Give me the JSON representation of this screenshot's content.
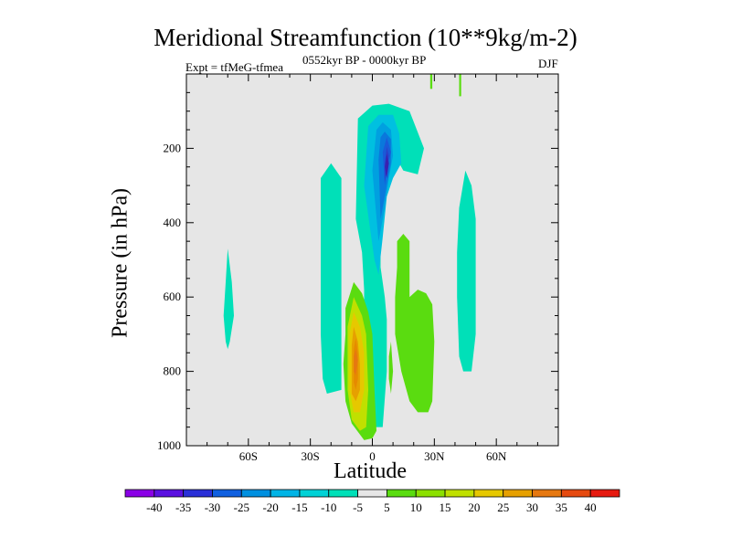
{
  "chart_data": {
    "type": "heatmap",
    "title": "Meridional Streamfunction (10**9kg/m-2)",
    "subtitle_left": "Expt = tfMeG-tfmea",
    "subtitle_center": "0552kyr BP - 0000kyr BP",
    "subtitle_right": "DJF",
    "xlabel": "Latitude",
    "ylabel": "Pressure (in hPa)",
    "xlim": [
      -90,
      90
    ],
    "ylim": [
      1000,
      0
    ],
    "x_ticks": [
      {
        "value": -60,
        "label": "60S"
      },
      {
        "value": -30,
        "label": "30S"
      },
      {
        "value": 0,
        "label": "0"
      },
      {
        "value": 30,
        "label": "30N"
      },
      {
        "value": 60,
        "label": "60N"
      }
    ],
    "y_ticks": [
      {
        "value": 200,
        "label": "200"
      },
      {
        "value": 400,
        "label": "400"
      },
      {
        "value": 600,
        "label": "600"
      },
      {
        "value": 800,
        "label": "800"
      },
      {
        "value": 1000,
        "label": "1000"
      }
    ],
    "background_color": "#e6e6e6",
    "colorbar": {
      "labels": [
        "-40",
        "-35",
        "-30",
        "-25",
        "-20",
        "-15",
        "-10",
        "-5",
        "5",
        "10",
        "15",
        "20",
        "25",
        "30",
        "35",
        "40"
      ],
      "colors": [
        "#8a00e6",
        "#5a10e0",
        "#2a30d8",
        "#1060e0",
        "#0090e0",
        "#00b4e6",
        "#00d2d6",
        "#00e0b8",
        "#e6e6e6",
        "#5adc10",
        "#8ce000",
        "#c0e000",
        "#e6c800",
        "#e6a000",
        "#e67810",
        "#e64a10",
        "#e61a10"
      ]
    },
    "regions": [
      {
        "name": "nh-upper-anomaly",
        "level": 5,
        "points": [
          [
            28,
            40
          ],
          [
            28,
            0
          ],
          [
            29,
            0
          ],
          [
            29,
            40
          ]
        ]
      },
      {
        "name": "nh-upper-anomaly-2",
        "level": 5,
        "points": [
          [
            42,
            60
          ],
          [
            42,
            0
          ],
          [
            43,
            0
          ],
          [
            43,
            60
          ]
        ]
      },
      {
        "name": "nh-upper-jet",
        "level": -5,
        "points": [
          [
            -8,
            390
          ],
          [
            -7,
            120
          ],
          [
            0,
            85
          ],
          [
            8,
            80
          ],
          [
            18,
            100
          ],
          [
            25,
            200
          ],
          [
            22,
            270
          ],
          [
            15,
            260
          ],
          [
            10,
            210
          ],
          [
            7,
            250
          ],
          [
            5,
            300
          ],
          [
            4,
            450
          ],
          [
            4,
            520
          ],
          [
            6,
            600
          ],
          [
            7,
            660
          ],
          [
            7,
            800
          ],
          [
            5,
            950
          ],
          [
            -3,
            950
          ],
          [
            -4,
            750
          ],
          [
            -4,
            580
          ],
          [
            -5,
            480
          ]
        ]
      },
      {
        "name": "jet-core-10",
        "level": -10,
        "points": [
          [
            -4,
            300
          ],
          [
            -2,
            140
          ],
          [
            3,
            110
          ],
          [
            10,
            110
          ],
          [
            13,
            160
          ],
          [
            14,
            240
          ],
          [
            10,
            280
          ],
          [
            7,
            330
          ],
          [
            5,
            440
          ],
          [
            3,
            540
          ],
          [
            1,
            500
          ],
          [
            -1,
            420
          ]
        ]
      },
      {
        "name": "jet-core-15",
        "level": -15,
        "points": [
          [
            0,
            260
          ],
          [
            2,
            150
          ],
          [
            5,
            130
          ],
          [
            9,
            150
          ],
          [
            10,
            220
          ],
          [
            8,
            280
          ],
          [
            6,
            360
          ],
          [
            3,
            450
          ]
        ]
      },
      {
        "name": "jet-core-20",
        "level": -20,
        "points": [
          [
            3,
            230
          ],
          [
            4,
            170
          ],
          [
            6,
            155
          ],
          [
            9,
            175
          ],
          [
            9,
            240
          ],
          [
            7,
            300
          ],
          [
            5,
            360
          ],
          [
            4,
            390
          ]
        ]
      },
      {
        "name": "jet-core-25",
        "level": -25,
        "points": [
          [
            5,
            210
          ],
          [
            7,
            170
          ],
          [
            9,
            210
          ],
          [
            7,
            260
          ],
          [
            6,
            300
          ]
        ]
      },
      {
        "name": "jet-core-30",
        "level": -30,
        "points": [
          [
            6,
            240
          ],
          [
            7,
            195
          ],
          [
            8,
            220
          ],
          [
            7,
            260
          ],
          [
            6,
            290
          ]
        ]
      },
      {
        "name": "jet-core-35",
        "level": -35,
        "points": [
          [
            6,
            250
          ],
          [
            7,
            215
          ],
          [
            8,
            240
          ],
          [
            7,
            280
          ]
        ]
      },
      {
        "name": "sh-band-west",
        "level": -5,
        "points": [
          [
            -25,
            280
          ],
          [
            -20,
            240
          ],
          [
            -15,
            280
          ],
          [
            -15,
            850
          ],
          [
            -22,
            860
          ],
          [
            -24,
            820
          ],
          [
            -25,
            700
          ]
        ]
      },
      {
        "name": "sh-column-far",
        "level": -5,
        "points": [
          [
            -70,
            470
          ],
          [
            -68,
            560
          ],
          [
            -67,
            650
          ],
          [
            -69,
            720
          ],
          [
            -70,
            740
          ],
          [
            -71,
            720
          ],
          [
            -72,
            650
          ],
          [
            -71,
            560
          ]
        ]
      },
      {
        "name": "nh-band-east",
        "level": -5,
        "points": [
          [
            42,
            360
          ],
          [
            45,
            260
          ],
          [
            48,
            300
          ],
          [
            50,
            390
          ],
          [
            50,
            520
          ],
          [
            50,
            700
          ],
          [
            48,
            800
          ],
          [
            44,
            800
          ],
          [
            42,
            760
          ],
          [
            41,
            600
          ],
          [
            41,
            480
          ]
        ]
      },
      {
        "name": "nh-green-lobe",
        "level": 5,
        "points": [
          [
            12,
            450
          ],
          [
            15,
            430
          ],
          [
            18,
            450
          ],
          [
            18,
            600
          ],
          [
            22,
            580
          ],
          [
            26,
            590
          ],
          [
            29,
            620
          ],
          [
            30,
            720
          ],
          [
            29,
            880
          ],
          [
            27,
            910
          ],
          [
            22,
            910
          ],
          [
            18,
            880
          ],
          [
            14,
            800
          ],
          [
            11,
            700
          ],
          [
            11,
            600
          ],
          [
            12,
            520
          ]
        ]
      },
      {
        "name": "nh-green-spot",
        "level": 5,
        "points": [
          [
            9,
            720
          ],
          [
            10,
            800
          ],
          [
            9,
            860
          ],
          [
            8,
            820
          ],
          [
            8,
            760
          ]
        ]
      },
      {
        "name": "sh-hadley-cell",
        "level": 5,
        "points": [
          [
            -13,
            630
          ],
          [
            -9,
            560
          ],
          [
            -5,
            590
          ],
          [
            -2,
            640
          ],
          [
            0,
            700
          ],
          [
            1,
            850
          ],
          [
            2,
            960
          ],
          [
            0,
            980
          ],
          [
            -4,
            985
          ],
          [
            -10,
            940
          ],
          [
            -13,
            880
          ],
          [
            -14,
            780
          ],
          [
            -13,
            700
          ]
        ]
      },
      {
        "name": "hadley-10",
        "level": 10,
        "points": [
          [
            -12,
            680
          ],
          [
            -9,
            600
          ],
          [
            -5,
            650
          ],
          [
            -3,
            700
          ],
          [
            -2,
            850
          ],
          [
            -3,
            950
          ],
          [
            -6,
            960
          ],
          [
            -10,
            930
          ],
          [
            -12,
            850
          ],
          [
            -12,
            750
          ]
        ]
      },
      {
        "name": "hadley-15",
        "level": 15,
        "points": [
          [
            -11,
            700
          ],
          [
            -9,
            640
          ],
          [
            -6,
            680
          ],
          [
            -4,
            750
          ],
          [
            -4,
            850
          ],
          [
            -6,
            910
          ],
          [
            -9,
            910
          ],
          [
            -11,
            850
          ],
          [
            -11,
            760
          ]
        ]
      },
      {
        "name": "hadley-20",
        "level": 20,
        "points": [
          [
            -10,
            730
          ],
          [
            -9,
            680
          ],
          [
            -7,
            720
          ],
          [
            -6,
            780
          ],
          [
            -6,
            850
          ],
          [
            -8,
            880
          ],
          [
            -10,
            860
          ],
          [
            -10,
            790
          ]
        ]
      },
      {
        "name": "hadley-25",
        "level": 25,
        "points": [
          [
            -9,
            740
          ],
          [
            -8,
            710
          ],
          [
            -7,
            750
          ],
          [
            -7,
            820
          ],
          [
            -8,
            850
          ],
          [
            -9,
            830
          ]
        ]
      },
      {
        "name": "hadley-30",
        "level": 30,
        "points": [
          [
            -9,
            760
          ],
          [
            -8,
            740
          ],
          [
            -7,
            770
          ],
          [
            -8,
            810
          ],
          [
            -9,
            800
          ]
        ]
      }
    ]
  }
}
